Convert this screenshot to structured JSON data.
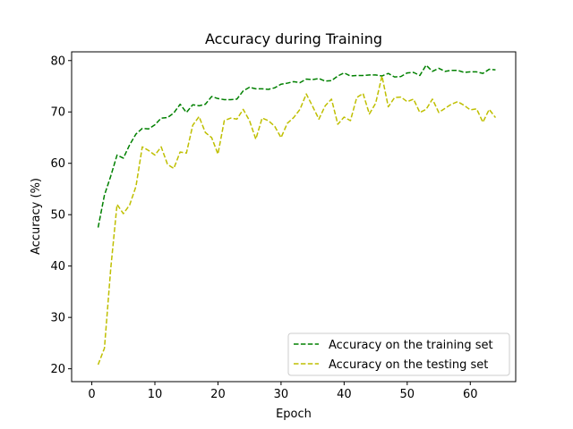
{
  "chart_data": {
    "type": "line",
    "title": "Accuracy during Training",
    "xlabel": "Epoch",
    "ylabel": "Accuracy (%)",
    "xlim": [
      -3.2,
      67.2
    ],
    "ylim": [
      17.5,
      81.7
    ],
    "xticks": [
      0,
      10,
      20,
      30,
      40,
      50,
      60
    ],
    "yticks": [
      20,
      30,
      40,
      50,
      60,
      70,
      80
    ],
    "grid": false,
    "legend_position": "lower-right",
    "x": [
      1,
      2,
      3,
      4,
      5,
      6,
      7,
      8,
      9,
      10,
      11,
      12,
      13,
      14,
      15,
      16,
      17,
      18,
      19,
      20,
      21,
      22,
      23,
      24,
      25,
      26,
      27,
      28,
      29,
      30,
      31,
      32,
      33,
      34,
      35,
      36,
      37,
      38,
      39,
      40,
      41,
      42,
      43,
      44,
      45,
      46,
      47,
      48,
      49,
      50,
      51,
      52,
      53,
      54,
      55,
      56,
      57,
      58,
      59,
      60,
      61,
      62,
      63,
      64
    ],
    "series": [
      {
        "name": "Accuracy on the training set",
        "color": "#008000",
        "line_style": "dashed",
        "values": [
          47.5,
          53.8,
          57.5,
          61.6,
          61.0,
          63.6,
          65.7,
          66.8,
          66.7,
          67.5,
          68.8,
          68.9,
          69.8,
          71.5,
          69.9,
          71.4,
          71.2,
          71.5,
          73.0,
          72.6,
          72.4,
          72.4,
          72.5,
          74.1,
          74.8,
          74.5,
          74.5,
          74.4,
          74.7,
          75.4,
          75.6,
          75.9,
          75.7,
          76.4,
          76.3,
          76.5,
          76.0,
          76.1,
          77.0,
          77.6,
          77.0,
          77.1,
          77.1,
          77.2,
          77.2,
          77.0,
          77.5,
          76.8,
          76.9,
          77.6,
          77.7,
          77.1,
          79.1,
          77.9,
          78.5,
          77.9,
          78.1,
          78.1,
          77.7,
          77.8,
          77.8,
          77.5,
          78.3,
          78.2
        ]
      },
      {
        "name": "Accuracy on the testing set",
        "color": "#bfbf00",
        "line_style": "dashed",
        "values": [
          20.8,
          24.0,
          39.5,
          52.0,
          50.2,
          51.9,
          55.5,
          63.2,
          62.5,
          61.6,
          63.2,
          59.8,
          59.0,
          62.2,
          62.0,
          67.4,
          69.1,
          66.0,
          65.0,
          61.8,
          68.3,
          68.8,
          68.6,
          70.5,
          68.3,
          64.7,
          68.8,
          68.3,
          67.2,
          65.0,
          67.8,
          68.9,
          70.5,
          73.5,
          71.1,
          68.6,
          71.2,
          72.5,
          67.6,
          69.0,
          68.3,
          72.8,
          73.6,
          69.6,
          71.7,
          77.0,
          71.0,
          72.8,
          72.9,
          72.0,
          72.5,
          69.9,
          70.5,
          72.5,
          69.9,
          70.7,
          71.5,
          72.0,
          71.3,
          70.4,
          70.6,
          68.0,
          70.5,
          68.9
        ]
      }
    ]
  }
}
